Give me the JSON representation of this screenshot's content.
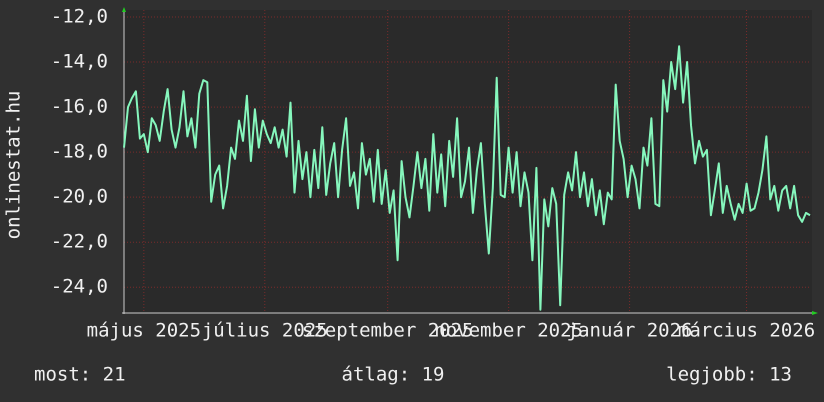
{
  "chart_data": {
    "type": "line",
    "y_label": "onlinestat.hu",
    "color": "#86f7bd",
    "grid": true,
    "ylim": [
      -25.1,
      -12
    ],
    "yticks": [
      {
        "value": -12,
        "label": "-12,0"
      },
      {
        "value": -14,
        "label": "-14,0"
      },
      {
        "value": -16,
        "label": "-16,0"
      },
      {
        "value": -18,
        "label": "-18,0"
      },
      {
        "value": -20,
        "label": "-20,0"
      },
      {
        "value": -22,
        "label": "-22,0"
      },
      {
        "value": -24,
        "label": "-24,0"
      }
    ],
    "xlim": [
      0,
      173
    ],
    "xticks": [
      {
        "value": 5,
        "label": "május 2025"
      },
      {
        "value": 35.5,
        "label": "július 2025"
      },
      {
        "value": 66.5,
        "label": "szeptember 2025"
      },
      {
        "value": 97,
        "label": "november 2025"
      },
      {
        "value": 127.5,
        "label": "január 2026"
      },
      {
        "value": 157,
        "label": "március 2026"
      }
    ],
    "values": [
      -17.8,
      -16,
      -15.6,
      -15.3,
      -17.4,
      -17.2,
      -18,
      -16.5,
      -16.8,
      -17.5,
      -16.2,
      -15.2,
      -17,
      -17.8,
      -16.9,
      -15.3,
      -17.3,
      -16.5,
      -17.8,
      -15.4,
      -14.8,
      -14.9,
      -20.2,
      -19,
      -18.6,
      -20.5,
      -19.5,
      -17.8,
      -18.3,
      -16.6,
      -17.5,
      -15.5,
      -18.4,
      -16.1,
      -17.8,
      -16.6,
      -17.2,
      -17.6,
      -16.9,
      -17.8,
      -17,
      -18.2,
      -15.8,
      -19.8,
      -17.5,
      -19.2,
      -18,
      -20,
      -17.9,
      -19.6,
      -16.9,
      -19.9,
      -18.5,
      -17.6,
      -20,
      -17.9,
      -16.5,
      -19.5,
      -18.9,
      -20.5,
      -17.6,
      -19,
      -18.3,
      -20.2,
      -17.9,
      -20.3,
      -18.8,
      -20.7,
      -19.7,
      -22.8,
      -18.4,
      -20,
      -20.9,
      -19.5,
      -18,
      -19.6,
      -18.3,
      -20.6,
      -17.2,
      -19.8,
      -18.1,
      -20.4,
      -17.5,
      -19.1,
      -16.5,
      -20,
      -19.3,
      -17.8,
      -20.7,
      -18.8,
      -17.6,
      -20.3,
      -22.5,
      -19.6,
      -14.7,
      -19.9,
      -20,
      -17.8,
      -19.8,
      -18,
      -20.4,
      -18.9,
      -19.8,
      -22.8,
      -18.7,
      -25,
      -20.1,
      -21.3,
      -19.6,
      -20.3,
      -24.8,
      -19.9,
      -18.9,
      -19.7,
      -18,
      -20,
      -18.9,
      -20.4,
      -19.2,
      -20.8,
      -19.7,
      -21.2,
      -19.8,
      -20.1,
      -15,
      -17.5,
      -18.3,
      -20,
      -18.6,
      -19.2,
      -20.5,
      -17.8,
      -18.6,
      -16.5,
      -20.3,
      -20.4,
      -14.8,
      -16.2,
      -14,
      -15.2,
      -13.3,
      -15.8,
      -14,
      -16.8,
      -18.5,
      -17.5,
      -18.2,
      -17.9,
      -20.8,
      -19.7,
      -18.5,
      -20.7,
      -19.5,
      -20.3,
      -21,
      -20.3,
      -20.7,
      -19.4,
      -20.6,
      -20.5,
      -19.8,
      -18.8,
      -17.3,
      -20.1,
      -19.5,
      -20.6,
      -19.7,
      -19.5,
      -20.5,
      -19.5,
      -20.8,
      -21.1,
      -20.7,
      -20.8
    ],
    "footer": [
      "most: 21",
      "átlag: 19",
      "legjobb: 13"
    ]
  }
}
